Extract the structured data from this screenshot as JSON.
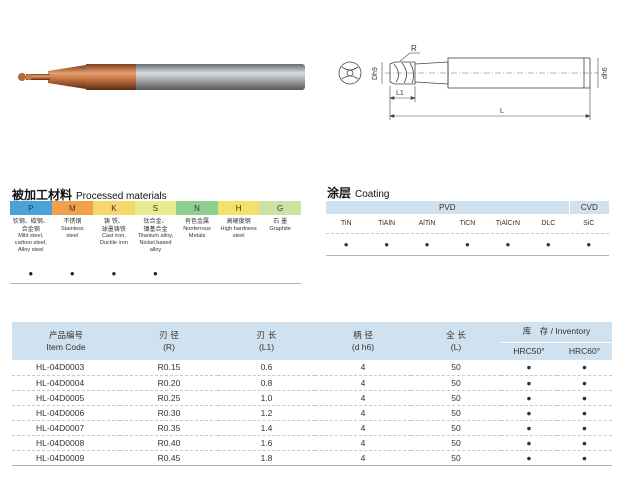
{
  "drawing": {
    "label_r": "R",
    "label_dh9": "Dh9",
    "label_d1": "d1",
    "label_dh6": "dh6",
    "label_l1": "L1",
    "label_l": "L"
  },
  "materials": {
    "title_cn": "被加工材料",
    "title_en": "Processed materials",
    "columns": [
      {
        "code": "P",
        "color": "#4aa3d8",
        "lines": [
          "钦钢、碳钢、",
          "合金钢",
          "Mild steel,",
          "carbon steel,",
          "Alloy steel"
        ],
        "mark": "●"
      },
      {
        "code": "M",
        "color": "#f0a14a",
        "lines": [
          "不锈钢",
          "Stainless",
          "steel"
        ],
        "mark": "●"
      },
      {
        "code": "K",
        "color": "#f5d76e",
        "lines": [
          "铸 铁、",
          "球墨铸铁",
          "Cast iron,",
          "Ductile iron"
        ],
        "mark": "●"
      },
      {
        "code": "S",
        "color": "#e9ea8e",
        "lines": [
          "钛合金、",
          "镍基合金",
          "Titanium alloy,",
          "Nickel based alloy"
        ],
        "mark": "●"
      },
      {
        "code": "N",
        "color": "#8fd08f",
        "lines": [
          "有色金属",
          "Nonferrous",
          "Metals"
        ],
        "mark": ""
      },
      {
        "code": "H",
        "color": "#f3e16a",
        "lines": [
          "高硬度钢",
          "High hardness",
          "steel"
        ],
        "mark": ""
      },
      {
        "code": "G",
        "color": "#c9e3a2",
        "lines": [
          "石 墨",
          "Graphite"
        ],
        "mark": ""
      }
    ]
  },
  "coating": {
    "title_cn": "涂层",
    "title_en": "Coating",
    "groups": [
      {
        "label": "PVD",
        "span": 6
      },
      {
        "label": "CVD",
        "span": 1
      }
    ],
    "types": [
      "TiN",
      "TiAlN",
      "AlTiN",
      "TiCN",
      "TiAlCrN",
      "DLC",
      "SiC"
    ],
    "marks": [
      "●",
      "●",
      "●",
      "●",
      "●",
      "●",
      "●"
    ]
  },
  "products": {
    "headers": {
      "code_cn": "产品编号",
      "code_en": "Item Code",
      "r_cn": "刃 径",
      "r_en": "(R)",
      "l1_cn": "刃 长",
      "l1_en": "(L1)",
      "d_cn": "柄 径",
      "d_en": "(d h6)",
      "l_cn": "全 长",
      "l_en": "(L)",
      "inv_cn": "库　存",
      "inv_en": "/ Inventory",
      "hrc50": "HRC50°",
      "hrc60": "HRC60°"
    },
    "rows": [
      {
        "code": "HL-04D0003",
        "r": "R0.15",
        "l1": "0.6",
        "d": "4",
        "l": "50",
        "hrc50": "●",
        "hrc60": "●"
      },
      {
        "code": "HL-04D0004",
        "r": "R0.20",
        "l1": "0.8",
        "d": "4",
        "l": "50",
        "hrc50": "●",
        "hrc60": "●"
      },
      {
        "code": "HL-04D0005",
        "r": "R0.25",
        "l1": "1.0",
        "d": "4",
        "l": "50",
        "hrc50": "●",
        "hrc60": "●"
      },
      {
        "code": "HL-04D0006",
        "r": "R0.30",
        "l1": "1.2",
        "d": "4",
        "l": "50",
        "hrc50": "●",
        "hrc60": "●"
      },
      {
        "code": "HL-04D0007",
        "r": "R0.35",
        "l1": "1.4",
        "d": "4",
        "l": "50",
        "hrc50": "●",
        "hrc60": "●"
      },
      {
        "code": "HL-04D0008",
        "r": "R0.40",
        "l1": "1.6",
        "d": "4",
        "l": "50",
        "hrc50": "●",
        "hrc60": "●"
      },
      {
        "code": "HL-04D0009",
        "r": "R0.45",
        "l1": "1.8",
        "d": "4",
        "l": "50",
        "hrc50": "●",
        "hrc60": "●"
      }
    ]
  }
}
